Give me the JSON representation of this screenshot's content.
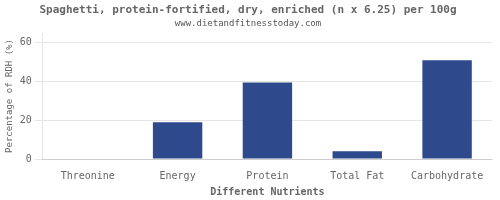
{
  "chart_data": {
    "type": "bar",
    "title": "Spaghetti, protein-fortified, dry, enriched (n x 6.25) per 100g",
    "subtitle": "www.dietandfitnesstoday.com",
    "xlabel": "Different Nutrients",
    "ylabel": "Percentage of RDH (%)",
    "categories": [
      "Threonine",
      "Energy",
      "Protein",
      "Total Fat",
      "Carbohydrate"
    ],
    "values": [
      0.3,
      19.0,
      39.5,
      4.0,
      51.0
    ],
    "color": "#2e4a8c",
    "ylim": [
      0,
      65
    ],
    "yticks": [
      0,
      20,
      40,
      60
    ],
    "grid": true
  }
}
